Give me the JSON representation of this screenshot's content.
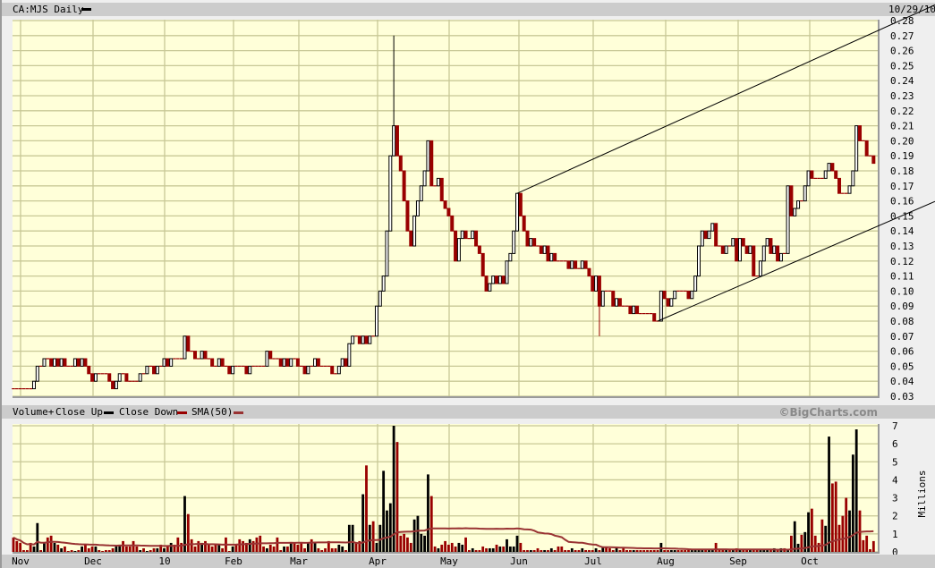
{
  "header": {
    "title": "CA:MJS Daily",
    "date": "10/29/10"
  },
  "volume_header": {
    "label": "Volume+",
    "close_up": "Close Up",
    "close_down": "Close Down",
    "sma": "SMA(50)",
    "copyright": "©BigCharts.com"
  },
  "colors": {
    "up": "#000000",
    "down": "#990000",
    "sma": "#993333",
    "plot_bg": "#ffffd9",
    "grid": "#c8c896",
    "bar": "#cccccc"
  },
  "chart_data": [
    {
      "type": "candlestick",
      "title": "CA:MJS Daily",
      "y_ticks": [
        "0.03",
        "0.04",
        "0.05",
        "0.06",
        "0.07",
        "0.08",
        "0.09",
        "0.10",
        "0.11",
        "0.12",
        "0.13",
        "0.14",
        "0.15",
        "0.16",
        "0.17",
        "0.18",
        "0.19",
        "0.20",
        "0.21",
        "0.22",
        "0.23",
        "0.24",
        "0.25",
        "0.26",
        "0.27",
        "0.28"
      ],
      "ylim": [
        0.03,
        0.28
      ],
      "x_ticks": [
        "Nov",
        "Dec",
        "10",
        "Feb",
        "Mar",
        "Apr",
        "May",
        "Jun",
        "Jul",
        "Aug",
        "Sep",
        "Oct"
      ],
      "grid": true,
      "close": [
        0.035,
        0.035,
        0.035,
        0.035,
        0.035,
        0.035,
        0.04,
        0.05,
        0.05,
        0.055,
        0.055,
        0.05,
        0.055,
        0.05,
        0.055,
        0.05,
        0.05,
        0.05,
        0.055,
        0.05,
        0.055,
        0.05,
        0.045,
        0.04,
        0.045,
        0.045,
        0.045,
        0.045,
        0.04,
        0.035,
        0.04,
        0.045,
        0.045,
        0.04,
        0.04,
        0.04,
        0.04,
        0.045,
        0.045,
        0.05,
        0.05,
        0.045,
        0.05,
        0.05,
        0.055,
        0.05,
        0.055,
        0.055,
        0.055,
        0.055,
        0.07,
        0.06,
        0.06,
        0.055,
        0.055,
        0.06,
        0.055,
        0.055,
        0.05,
        0.05,
        0.055,
        0.05,
        0.05,
        0.045,
        0.05,
        0.05,
        0.05,
        0.05,
        0.045,
        0.05,
        0.05,
        0.05,
        0.05,
        0.05,
        0.06,
        0.055,
        0.055,
        0.055,
        0.05,
        0.055,
        0.05,
        0.055,
        0.055,
        0.05,
        0.05,
        0.045,
        0.05,
        0.05,
        0.055,
        0.05,
        0.05,
        0.05,
        0.05,
        0.045,
        0.045,
        0.05,
        0.055,
        0.05,
        0.065,
        0.07,
        0.07,
        0.065,
        0.07,
        0.065,
        0.07,
        0.07,
        0.09,
        0.1,
        0.11,
        0.14,
        0.19,
        0.21,
        0.19,
        0.18,
        0.16,
        0.14,
        0.13,
        0.15,
        0.16,
        0.17,
        0.18,
        0.2,
        0.17,
        0.17,
        0.175,
        0.16,
        0.155,
        0.15,
        0.14,
        0.12,
        0.135,
        0.14,
        0.135,
        0.135,
        0.14,
        0.13,
        0.125,
        0.11,
        0.1,
        0.105,
        0.11,
        0.105,
        0.11,
        0.105,
        0.12,
        0.125,
        0.14,
        0.165,
        0.15,
        0.14,
        0.13,
        0.135,
        0.13,
        0.13,
        0.125,
        0.13,
        0.12,
        0.125,
        0.12,
        0.12,
        0.12,
        0.12,
        0.115,
        0.12,
        0.115,
        0.115,
        0.12,
        0.115,
        0.11,
        0.1,
        0.11,
        0.09,
        0.1,
        0.1,
        0.1,
        0.09,
        0.095,
        0.09,
        0.09,
        0.09,
        0.085,
        0.09,
        0.085,
        0.085,
        0.085,
        0.085,
        0.085,
        0.08,
        0.08,
        0.1,
        0.095,
        0.09,
        0.095,
        0.1,
        0.1,
        0.1,
        0.1,
        0.095,
        0.1,
        0.11,
        0.13,
        0.14,
        0.135,
        0.14,
        0.145,
        0.13,
        0.13,
        0.125,
        0.13,
        0.13,
        0.135,
        0.12,
        0.135,
        0.13,
        0.125,
        0.13,
        0.11,
        0.11,
        0.12,
        0.13,
        0.135,
        0.125,
        0.13,
        0.12,
        0.125,
        0.125,
        0.17,
        0.15,
        0.155,
        0.16,
        0.16,
        0.17,
        0.18,
        0.175,
        0.175,
        0.175,
        0.175,
        0.18,
        0.185,
        0.18,
        0.175,
        0.165,
        0.165,
        0.165,
        0.17,
        0.18,
        0.21,
        0.2,
        0.2,
        0.19,
        0.19,
        0.185
      ],
      "peak_high": 0.27,
      "trough_low": 0.07,
      "trendlines": [
        {
          "name": "upper",
          "start_price": 0.165,
          "end_price": 0.272
        },
        {
          "name": "lower",
          "start_price": 0.08,
          "end_price": 0.142
        }
      ]
    },
    {
      "type": "bar",
      "ylabel": "Millions",
      "y_ticks": [
        "0",
        "1",
        "2",
        "3",
        "4",
        "5",
        "6",
        "7"
      ],
      "ylim": [
        0,
        7
      ],
      "x_ticks": [
        "Nov",
        "Dec",
        "10",
        "Feb",
        "Mar",
        "Apr",
        "May",
        "Jun",
        "Jul",
        "Aug",
        "Sep",
        "Oct"
      ],
      "series": [
        {
          "name": "Volume+",
          "values": [
            0.8,
            0.6,
            0.5,
            0.1,
            0.1,
            0.5,
            0.3,
            1.6,
            0.1,
            0.5,
            0.8,
            0.9,
            0.5,
            0.4,
            0.2,
            0.3,
            0.05,
            0.1,
            0.05,
            0.1,
            0.3,
            0.4,
            0.2,
            0.3,
            0.3,
            0.1,
            0.05,
            0.1,
            0.1,
            0.2,
            0.3,
            0.4,
            0.6,
            0.3,
            0.3,
            0.6,
            0.3,
            0.1,
            0.2,
            0.05,
            0.1,
            0.2,
            0.2,
            0.4,
            0.2,
            0.3,
            0.5,
            0.4,
            0.8,
            0.5,
            3.1,
            2.1,
            0.7,
            0.3,
            0.6,
            0.5,
            0.6,
            0.4,
            0.3,
            0.4,
            0.4,
            0.2,
            0.8,
            0.05,
            0.3,
            0.4,
            0.7,
            0.6,
            0.5,
            0.7,
            0.6,
            0.8,
            0.9,
            0.3,
            0.2,
            0.4,
            0.3,
            0.8,
            0.1,
            0.3,
            0.3,
            0.5,
            0.5,
            0.4,
            0.5,
            0.2,
            0.5,
            0.7,
            0.5,
            0.2,
            0.1,
            0.2,
            0.6,
            0.2,
            0.2,
            0.4,
            0.3,
            0.1,
            1.5,
            1.5,
            0.5,
            0.6,
            3.2,
            4.8,
            1.5,
            1.7,
            0.5,
            1.5,
            4.5,
            2.3,
            2.7,
            7.0,
            6.1,
            0.9,
            1.0,
            0.8,
            0.5,
            1.8,
            2.0,
            1.0,
            0.9,
            4.3,
            3.1,
            0.3,
            0.2,
            0.4,
            0.6,
            0.4,
            0.5,
            0.3,
            0.5,
            0.4,
            0.8,
            0.1,
            0.2,
            0.1,
            0.1,
            0.3,
            0.2,
            0.2,
            0.2,
            0.4,
            0.3,
            0.3,
            0.7,
            0.3,
            0.3,
            0.9,
            0.5,
            0.1,
            0.1,
            0.1,
            0.1,
            0.2,
            0.1,
            0.1,
            0.1,
            0.2,
            0.1,
            0.3,
            0.3,
            0.1,
            0.1,
            0.2,
            0.1,
            0.1,
            0.2,
            0.1,
            0.1,
            0.1,
            0.2,
            0.1,
            0.3,
            0.3,
            0.2,
            0.1,
            0.2,
            0.1,
            0.2,
            0.1,
            0.1,
            0.1,
            0.1,
            0.1,
            0.1,
            0.1,
            0.1,
            0.1,
            0.1,
            0.5,
            0.1,
            0.1,
            0.1,
            0.1,
            0.1,
            0.1,
            0.1,
            0.1,
            0.1,
            0.1,
            0.1,
            0.1,
            0.1,
            0.1,
            0.1,
            0.5,
            0.1,
            0.1,
            0.1,
            0.1,
            0.1,
            0.2,
            0.1,
            0.1,
            0.1,
            0.1,
            0.1,
            0.1,
            0.1,
            0.1,
            0.1,
            0.1,
            0.2,
            0.1,
            0.2,
            0.2,
            0.1,
            0.9,
            1.7,
            0.45,
            0.95,
            1.1,
            2.2,
            2.4,
            0.9,
            0.5,
            1.8,
            1.45,
            6.4,
            3.8,
            3.9,
            1.5,
            2.0,
            3.0,
            2.3,
            5.4,
            6.8,
            2.3,
            0.65,
            0.9,
            0.15,
            0.6
          ]
        }
      ],
      "sma_window": 50
    }
  ]
}
